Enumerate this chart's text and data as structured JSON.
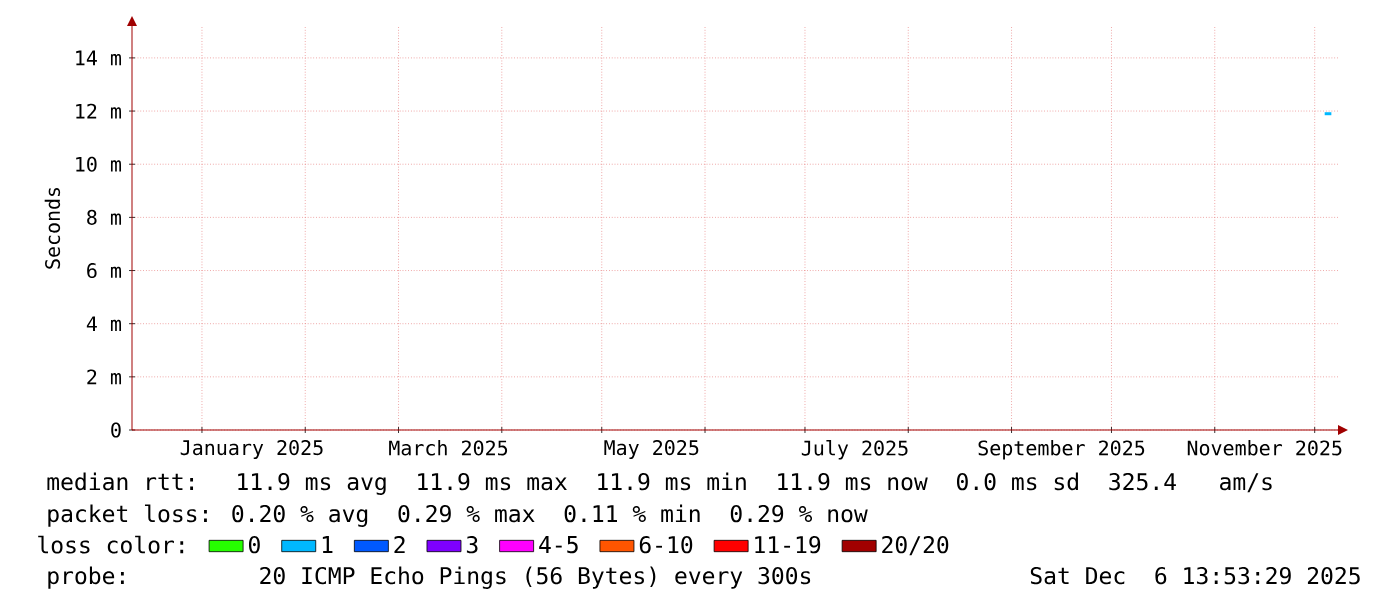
{
  "chart_data": {
    "type": "line",
    "ylabel": "Seconds",
    "legend_title": "loss color:",
    "legend": "bottom",
    "grid": true,
    "marker": "none",
    "line_style": "solid",
    "xlim": [
      "2024-12-11",
      "2025-12-08"
    ],
    "xticks": [
      {
        "value": "2025-01-01",
        "label": null
      },
      {
        "value": "2025-01-16",
        "label": "January 2025"
      },
      {
        "value": "2025-02-01",
        "label": null
      },
      {
        "value": "2025-03-01",
        "label": null
      },
      {
        "value": "2025-03-16",
        "label": "March 2025"
      },
      {
        "value": "2025-04-01",
        "label": null
      },
      {
        "value": "2025-05-01",
        "label": null
      },
      {
        "value": "2025-05-16",
        "label": "May 2025"
      },
      {
        "value": "2025-06-01",
        "label": null
      },
      {
        "value": "2025-07-01",
        "label": null
      },
      {
        "value": "2025-07-16",
        "label": "July 2025"
      },
      {
        "value": "2025-08-01",
        "label": null
      },
      {
        "value": "2025-09-01",
        "label": null
      },
      {
        "value": "2025-09-16",
        "label": "September 2025"
      },
      {
        "value": "2025-10-01",
        "label": null
      },
      {
        "value": "2025-11-01",
        "label": null
      },
      {
        "value": "2025-11-16",
        "label": "November 2025"
      },
      {
        "value": "2025-12-01",
        "label": null
      }
    ],
    "ylim": [
      0,
      15.2
    ],
    "yticks": [
      0,
      {
        "value": 2,
        "label": "2 m"
      },
      {
        "value": 4,
        "label": "4 m"
      },
      {
        "value": 6,
        "label": "6 m"
      },
      {
        "value": 8,
        "label": "8 m"
      },
      {
        "value": 10,
        "label": "10 m"
      },
      {
        "value": 12,
        "label": "12 m"
      },
      {
        "value": 14,
        "label": "14 m"
      }
    ],
    "x": [
      "2025-12-04",
      "2025-12-06"
    ],
    "series": [
      {
        "name": "0",
        "color": "#26ff00",
        "values": [
          null,
          null
        ]
      },
      {
        "name": "1",
        "color": "#00b8ff",
        "values": [
          11.9,
          11.9
        ]
      },
      {
        "name": "2",
        "color": "#0059ff",
        "values": [
          null,
          null
        ]
      },
      {
        "name": "3",
        "color": "#7e00ff",
        "values": [
          null,
          null
        ]
      },
      {
        "name": "4-5",
        "color": "#ff00ff",
        "values": [
          null,
          null
        ]
      },
      {
        "name": "6-10",
        "color": "#ff5500",
        "values": [
          null,
          null
        ]
      },
      {
        "name": "11-19",
        "color": "#ff0000",
        "values": [
          null,
          null
        ]
      },
      {
        "name": "20/20",
        "color": "#a10000",
        "values": [
          null,
          null
        ]
      }
    ],
    "annotations": [
      "median rtt:  11.9 ms avg  11.9 ms max  11.9 ms min  11.9 ms now  0.0 ms sd  325.4   am/s",
      "packet loss: 0.20 % avg  0.29 % max  0.11 % min  0.29 % now",
      "probe:       20 ICMP Echo Pings (56 Bytes) every 300s",
      "Sat Dec  6 13:53:29 2025"
    ]
  }
}
